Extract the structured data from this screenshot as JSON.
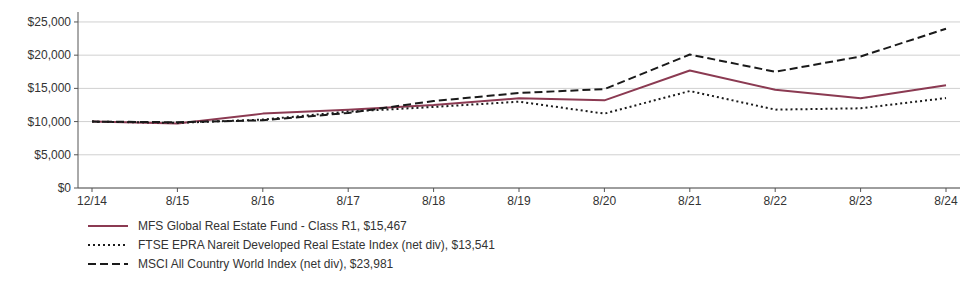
{
  "chart_data": {
    "type": "line",
    "categories": [
      "12/14",
      "8/15",
      "8/16",
      "8/17",
      "8/18",
      "8/19",
      "8/20",
      "8/21",
      "8/22",
      "8/23",
      "8/24"
    ],
    "series": [
      {
        "name": "MFS Global Real Estate Fund - Class R1, $15,467",
        "color": "#8B3A52",
        "line_style": "solid",
        "values": [
          10000,
          9700,
          11200,
          11800,
          12500,
          13500,
          13200,
          17700,
          14800,
          13500,
          15467
        ]
      },
      {
        "name": "FTSE EPRA Nareit Developed Real Estate Index (net div), $13,541",
        "color": "#1a1a1a",
        "line_style": "dotted",
        "values": [
          10000,
          9800,
          10300,
          11500,
          12200,
          13000,
          11200,
          14600,
          11800,
          12000,
          13541
        ]
      },
      {
        "name": "MSCI All Country World Index (net div), $23,981",
        "color": "#1a1a1a",
        "line_style": "dashed",
        "values": [
          10000,
          9900,
          10200,
          11300,
          13100,
          14300,
          14900,
          20100,
          17500,
          19800,
          23981
        ]
      }
    ],
    "ylim": [
      0,
      26500
    ],
    "yticks": [
      {
        "value": 0,
        "label": "$0"
      },
      {
        "value": 5000,
        "label": "$5,000"
      },
      {
        "value": 10000,
        "label": "$10,000"
      },
      {
        "value": 15000,
        "label": "$15,000"
      },
      {
        "value": 20000,
        "label": "$20,000"
      },
      {
        "value": 25000,
        "label": "$25,000"
      }
    ],
    "grid": true,
    "legend": "bottom"
  }
}
